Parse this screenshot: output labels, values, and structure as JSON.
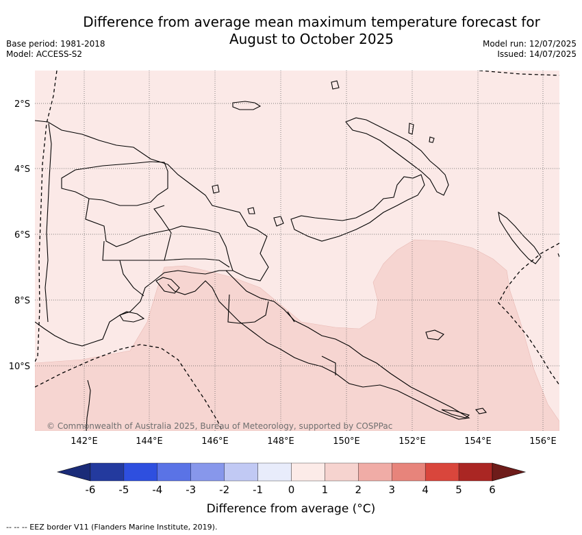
{
  "title": {
    "line1": "Difference from average mean maximum temperature forecast for",
    "line2": "August to October 2025"
  },
  "meta_left": {
    "base_period": "Base period: 1981-2018",
    "model": "Model: ACCESS-S2"
  },
  "meta_right": {
    "model_run": "Model run: 12/07/2025",
    "issued": "Issued: 14/07/2025"
  },
  "map": {
    "lon_labels": [
      "142°E",
      "144°E",
      "146°E",
      "148°E",
      "150°E",
      "152°E",
      "154°E",
      "156°E"
    ],
    "lat_labels": [
      "2°S",
      "4°S",
      "6°S",
      "8°S",
      "10°S"
    ],
    "copyright": "© Commonwealth of Australia 2025, Bureau of Meteorology, supported by COSPPac",
    "colors": {
      "background_anomaly_0_1": "#fbe9e7",
      "anomaly_1_2": "#f6d5d1",
      "coast": "#000000"
    }
  },
  "colorbar": {
    "ticks": [
      "-6",
      "-5",
      "-4",
      "-3",
      "-2",
      "-1",
      "0",
      "1",
      "2",
      "3",
      "4",
      "5",
      "6"
    ],
    "colors": [
      "#233a9e",
      "#2e4fdf",
      "#5a73e6",
      "#8797eb",
      "#c1c9f4",
      "#e8ecfb",
      "#fcebe8",
      "#f6d3cf",
      "#f0aca6",
      "#e7847b",
      "#d9463c",
      "#aa2623"
    ],
    "under_color": "#1a2b78",
    "over_color": "#6e1c1a",
    "label": "Difference from average (°C)"
  },
  "footer": "--  --  -- EEZ border V11 (Flanders Marine Institute, 2019)."
}
